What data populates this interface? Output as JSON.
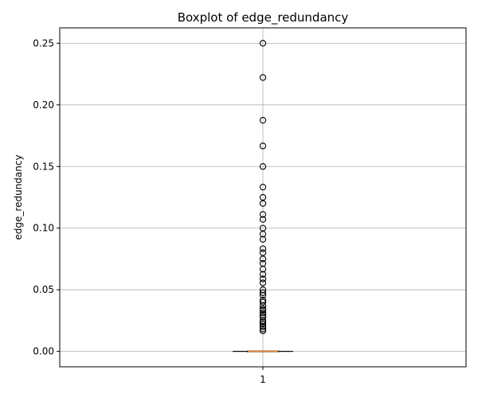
{
  "chart_data": {
    "type": "box",
    "title": "Boxplot of edge_redundancy",
    "ylabel": "edge_redundancy",
    "xlabel": "",
    "categories": [
      "1"
    ],
    "ylim": [
      -0.0125,
      0.2625
    ],
    "y_ticks": [
      0.0,
      0.05,
      0.1,
      0.15,
      0.2,
      0.25
    ],
    "y_tick_labels": [
      "0.00",
      "0.05",
      "0.10",
      "0.15",
      "0.20",
      "0.25"
    ],
    "grid": true,
    "box": {
      "q1": 0.0,
      "median": 0.0,
      "q3": 0.0,
      "whisker_low": 0.0,
      "whisker_high": 0.0
    },
    "outliers": [
      0.25,
      0.2222,
      0.1875,
      0.1667,
      0.15,
      0.1333,
      0.125,
      0.12,
      0.1111,
      0.1071,
      0.1,
      0.0952,
      0.0909,
      0.0833,
      0.08,
      0.075,
      0.0714,
      0.0667,
      0.0625,
      0.0588,
      0.0556,
      0.05,
      0.0476,
      0.0455,
      0.0417,
      0.04,
      0.037,
      0.0345,
      0.0333,
      0.0312,
      0.0294,
      0.0278,
      0.025,
      0.0238,
      0.0222,
      0.02,
      0.0182,
      0.0167
    ],
    "colors": {
      "median_line": "#f28e2b",
      "box": "#000000",
      "grid": "#b0b0b0",
      "outlier_edge": "#000000"
    }
  }
}
